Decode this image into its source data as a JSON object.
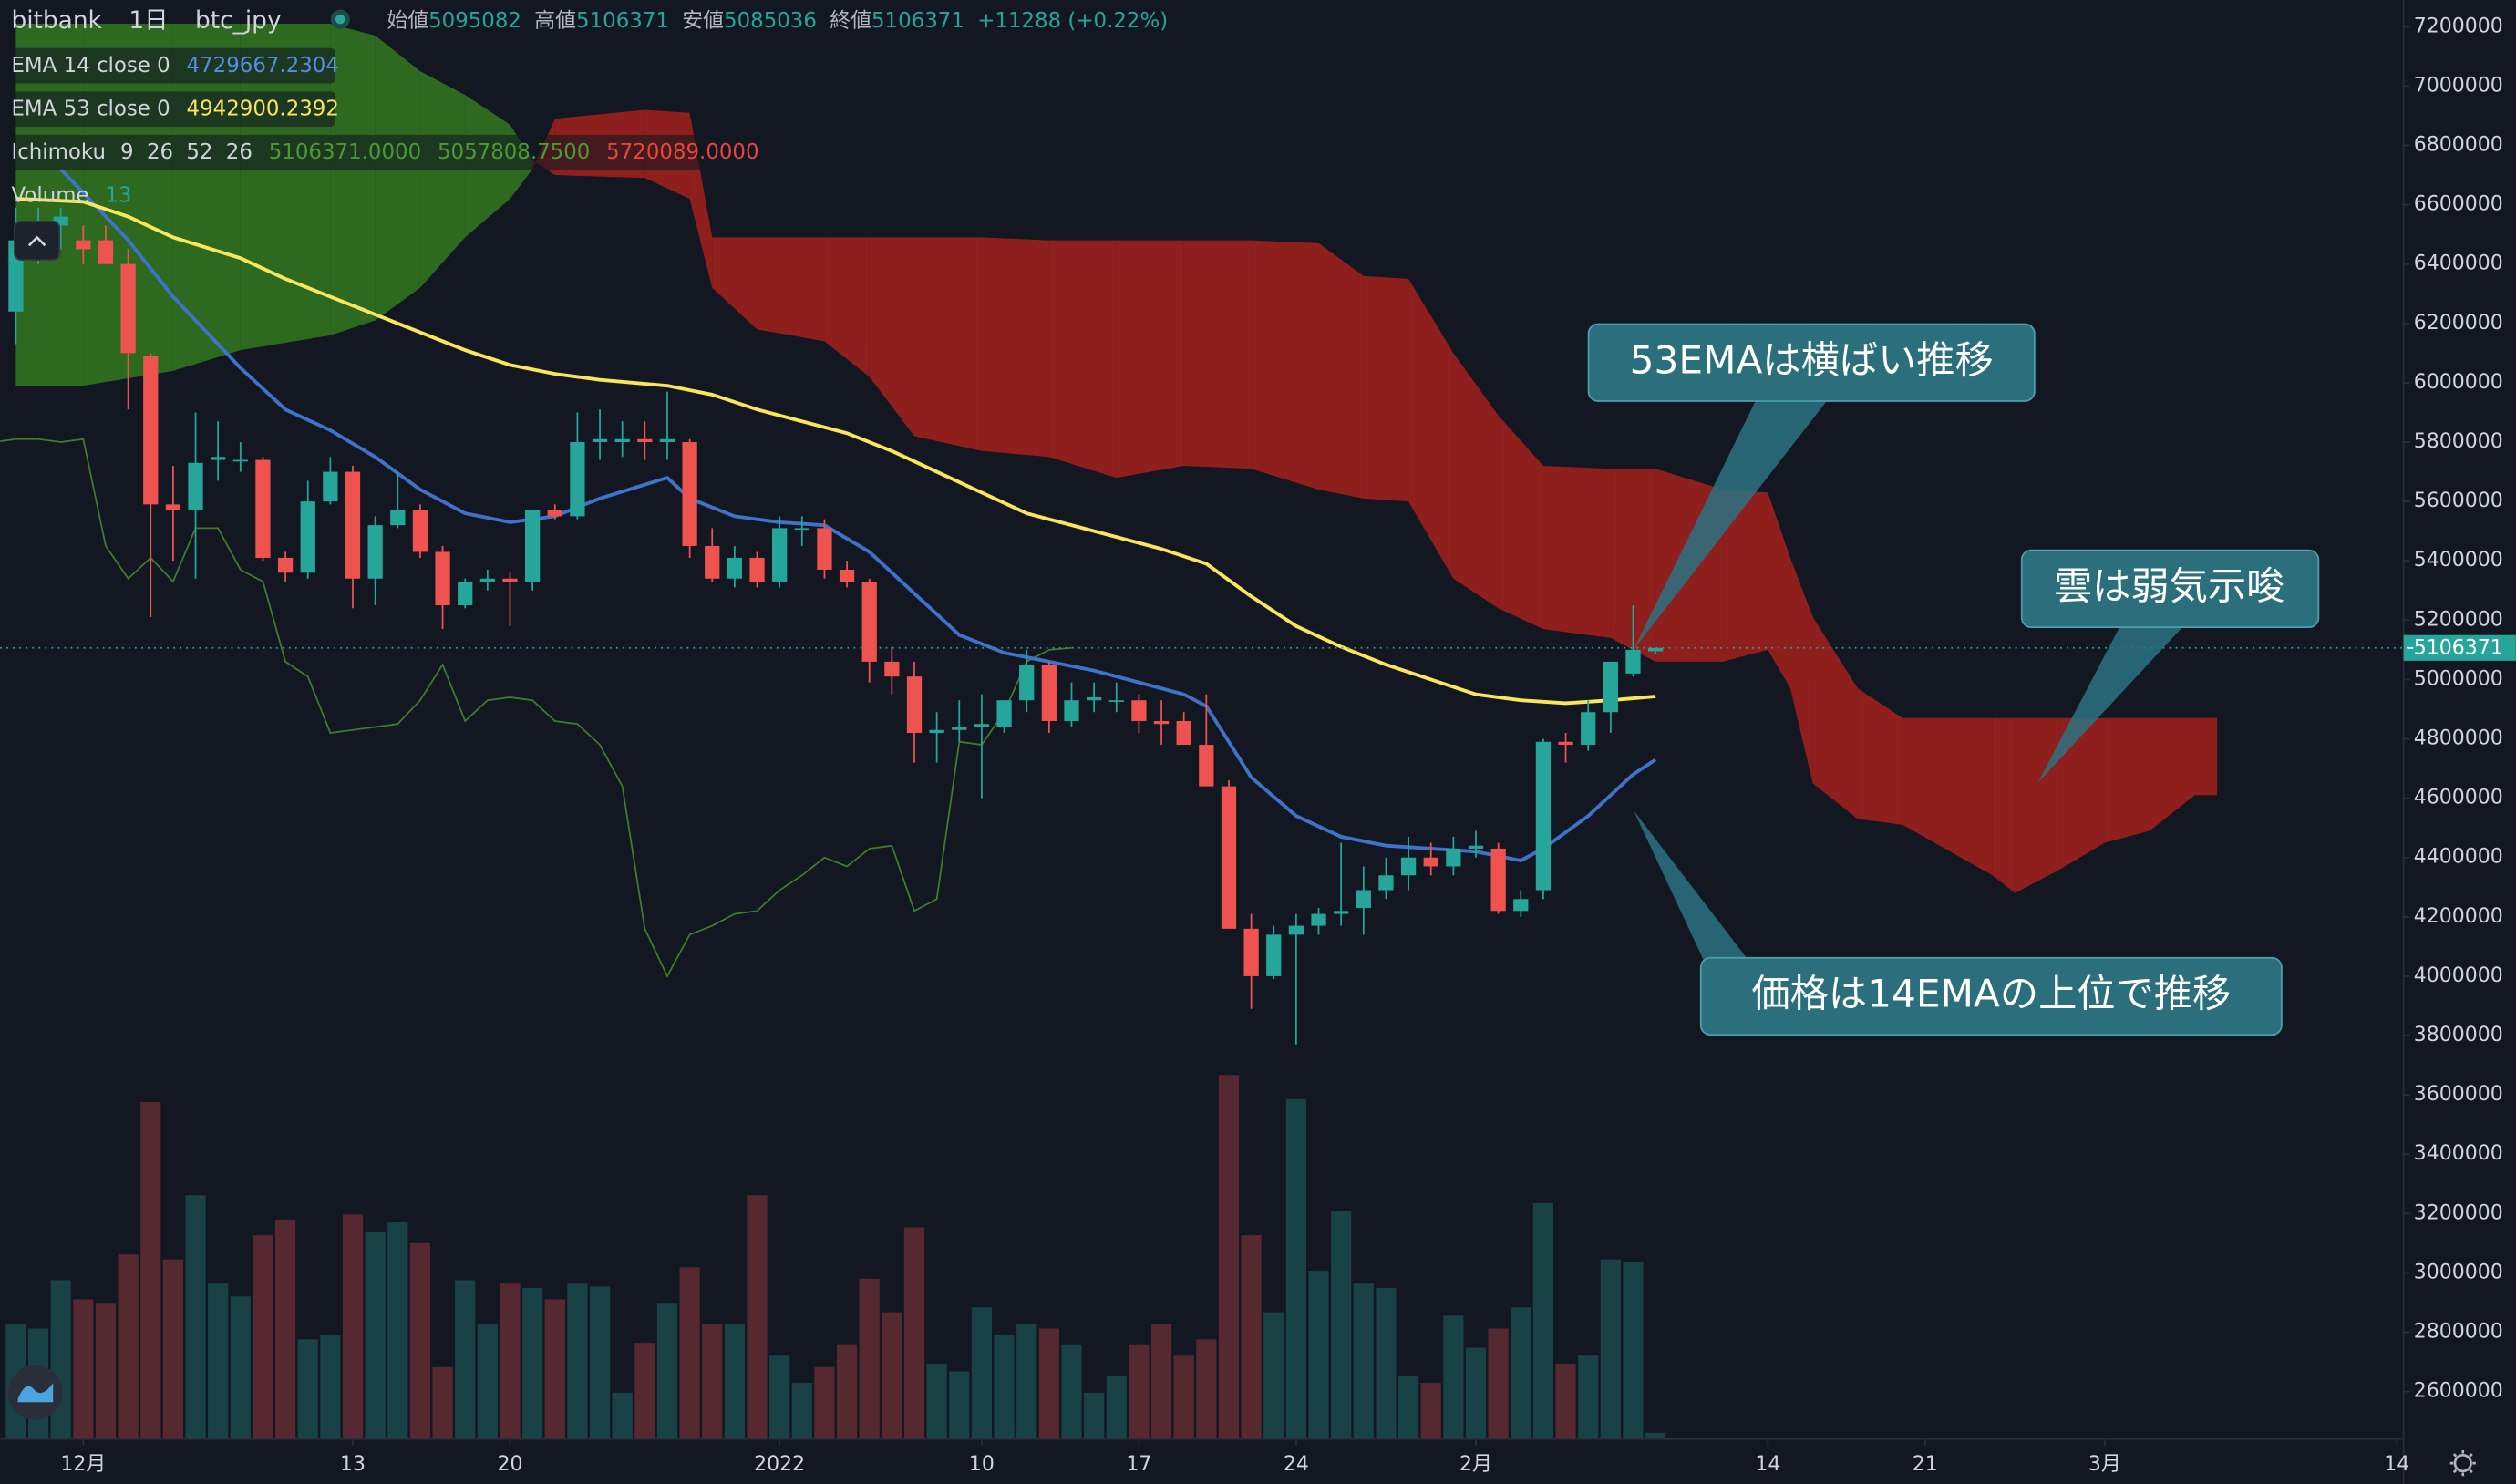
{
  "chart_data": {
    "type": "candlestick",
    "title": "bitbank",
    "interval": "1日",
    "symbol": "btc_jpy",
    "ohlc_labels": [
      "始値",
      "高値",
      "安値",
      "終値"
    ],
    "change": "+11288 (+0.22%)",
    "up_color": "#26a69a",
    "down_color": "#ef5350",
    "x": [
      -3,
      -2,
      -1,
      0,
      1,
      2,
      3,
      4,
      5,
      6,
      7,
      8,
      9,
      10,
      11,
      12,
      13,
      14,
      15,
      16,
      17,
      18,
      19,
      20,
      21,
      22,
      23,
      24,
      25,
      26,
      27,
      28,
      29,
      30,
      31,
      32,
      33,
      34,
      35,
      36,
      37,
      38,
      39,
      40,
      41,
      42,
      43,
      44,
      45,
      46,
      47,
      48,
      49,
      50,
      51,
      52,
      53,
      54,
      55,
      56,
      57,
      58,
      59,
      60,
      61,
      62,
      63,
      64,
      65,
      66,
      67,
      68,
      69,
      70
    ],
    "candles": [
      [
        6240000,
        6590000,
        6130000,
        6480000
      ],
      [
        6480000,
        6590000,
        6400000,
        6530000
      ],
      [
        6530000,
        6590000,
        6450000,
        6560000
      ],
      [
        6480000,
        6530000,
        6400000,
        6450000
      ],
      [
        6480000,
        6530000,
        6400000,
        6400000
      ],
      [
        6400000,
        6450000,
        5910000,
        6100000
      ],
      [
        6090000,
        6100000,
        5210000,
        5590000
      ],
      [
        5590000,
        5720000,
        5400000,
        5570000
      ],
      [
        5570000,
        5900000,
        5340000,
        5730000
      ],
      [
        5740000,
        5870000,
        5670000,
        5750000
      ],
      [
        5740000,
        5800000,
        5700000,
        5740000
      ],
      [
        5740000,
        5750000,
        5400000,
        5410000
      ],
      [
        5410000,
        5430000,
        5330000,
        5360000
      ],
      [
        5360000,
        5670000,
        5340000,
        5600000
      ],
      [
        5600000,
        5750000,
        5590000,
        5700000
      ],
      [
        5700000,
        5720000,
        5240000,
        5340000
      ],
      [
        5340000,
        5550000,
        5250000,
        5520000
      ],
      [
        5520000,
        5700000,
        5510000,
        5570000
      ],
      [
        5570000,
        5590000,
        5410000,
        5430000
      ],
      [
        5430000,
        5450000,
        5170000,
        5250000
      ],
      [
        5250000,
        5340000,
        5240000,
        5330000
      ],
      [
        5330000,
        5370000,
        5300000,
        5340000
      ],
      [
        5340000,
        5360000,
        5180000,
        5330000
      ],
      [
        5330000,
        5570000,
        5300000,
        5570000
      ],
      [
        5570000,
        5590000,
        5540000,
        5550000
      ],
      [
        5550000,
        5900000,
        5540000,
        5800000
      ],
      [
        5800000,
        5910000,
        5740000,
        5810000
      ],
      [
        5800000,
        5870000,
        5750000,
        5810000
      ],
      [
        5810000,
        5870000,
        5740000,
        5800000
      ],
      [
        5800000,
        5970000,
        5740000,
        5810000
      ],
      [
        5800000,
        5810000,
        5410000,
        5450000
      ],
      [
        5450000,
        5510000,
        5330000,
        5340000
      ],
      [
        5340000,
        5450000,
        5310000,
        5410000
      ],
      [
        5410000,
        5430000,
        5310000,
        5330000
      ],
      [
        5330000,
        5550000,
        5310000,
        5510000
      ],
      [
        5510000,
        5550000,
        5450000,
        5510000
      ],
      [
        5510000,
        5540000,
        5340000,
        5370000
      ],
      [
        5370000,
        5400000,
        5310000,
        5330000
      ],
      [
        5330000,
        5340000,
        4990000,
        5060000
      ],
      [
        5060000,
        5110000,
        4950000,
        5010000
      ],
      [
        5010000,
        5060000,
        4720000,
        4820000
      ],
      [
        4820000,
        4890000,
        4720000,
        4830000
      ],
      [
        4830000,
        4930000,
        4790000,
        4840000
      ],
      [
        4840000,
        4950000,
        4600000,
        4850000
      ],
      [
        4840000,
        4930000,
        4820000,
        4930000
      ],
      [
        4930000,
        5100000,
        4890000,
        5050000
      ],
      [
        5050000,
        5060000,
        4820000,
        4860000
      ],
      [
        4860000,
        4990000,
        4840000,
        4930000
      ],
      [
        4930000,
        4990000,
        4890000,
        4940000
      ],
      [
        4930000,
        4990000,
        4890000,
        4930000
      ],
      [
        4930000,
        4950000,
        4820000,
        4860000
      ],
      [
        4860000,
        4930000,
        4780000,
        4850000
      ],
      [
        4860000,
        4890000,
        4780000,
        4780000
      ],
      [
        4780000,
        4950000,
        4640000,
        4640000
      ],
      [
        4640000,
        4660000,
        4160000,
        4160000
      ],
      [
        4160000,
        4210000,
        3890000,
        4000000
      ],
      [
        4000000,
        4170000,
        3990000,
        4140000
      ],
      [
        4140000,
        4210000,
        3770000,
        4170000
      ],
      [
        4170000,
        4230000,
        4140000,
        4210000
      ],
      [
        4210000,
        4450000,
        4170000,
        4220000
      ],
      [
        4230000,
        4370000,
        4140000,
        4290000
      ],
      [
        4290000,
        4400000,
        4260000,
        4340000
      ],
      [
        4340000,
        4470000,
        4290000,
        4400000
      ],
      [
        4400000,
        4450000,
        4340000,
        4370000
      ],
      [
        4370000,
        4470000,
        4340000,
        4430000
      ],
      [
        4430000,
        4490000,
        4400000,
        4440000
      ],
      [
        4430000,
        4450000,
        4210000,
        4220000
      ],
      [
        4220000,
        4290000,
        4200000,
        4260000
      ],
      [
        4290000,
        4800000,
        4260000,
        4790000
      ],
      [
        4790000,
        4820000,
        4720000,
        4780000
      ],
      [
        4780000,
        4930000,
        4760000,
        4890000
      ],
      [
        4890000,
        5060000,
        4820000,
        5060000
      ],
      [
        5020000,
        5250000,
        5010000,
        5100000
      ],
      [
        5095082,
        5106371,
        5085036,
        5106371
      ]
    ],
    "volume": {
      "name": "Volume",
      "values": [
        234,
        224,
        322,
        283,
        276,
        374,
        683,
        364,
        494,
        315,
        289,
        413,
        445,
        202,
        211,
        455,
        419,
        439,
        397,
        146,
        322,
        234,
        315,
        306,
        283,
        315,
        309,
        94,
        195,
        276,
        348,
        234,
        234,
        494,
        169,
        114,
        146,
        192,
        325,
        257,
        429,
        153,
        137,
        267,
        211,
        234,
        224,
        192,
        94,
        127,
        192,
        234,
        169,
        202,
        738,
        413,
        257,
        689,
        341,
        462,
        315,
        306,
        127,
        114,
        250,
        185,
        224,
        267,
        478,
        153,
        169,
        364,
        358,
        13
      ]
    },
    "series": [
      {
        "name": "EMA 14 close 0",
        "color": "#3f73c9",
        "x": [
          -1,
          2,
          4,
          7,
          9,
          11,
          13,
          15,
          17,
          19,
          21,
          23,
          26,
          27,
          29,
          31,
          33,
          35,
          37,
          39,
          41,
          43,
          45,
          47,
          49,
          50,
          51,
          52,
          54,
          56,
          58,
          60,
          62,
          64,
          65,
          67,
          69,
          70
        ],
        "values": [
          6720000,
          6480000,
          6290000,
          6050000,
          5910000,
          5840000,
          5750000,
          5640000,
          5560000,
          5530000,
          5550000,
          5610000,
          5680000,
          5610000,
          5550000,
          5530000,
          5520000,
          5430000,
          5290000,
          5150000,
          5090000,
          5060000,
          5030000,
          4990000,
          4950000,
          4910000,
          4790000,
          4670000,
          4540000,
          4470000,
          4440000,
          4430000,
          4420000,
          4390000,
          4430000,
          4540000,
          4680000,
          4729667.2304
        ]
      },
      {
        "name": "EMA 53 close 0",
        "color": "#f9e65c",
        "x": [
          -3,
          0,
          2,
          4,
          7,
          9,
          11,
          13,
          15,
          17,
          19,
          21,
          23,
          26,
          28,
          30,
          32,
          34,
          36,
          38,
          40,
          42,
          44,
          46,
          48,
          50,
          52,
          54,
          56,
          58,
          60,
          62,
          64,
          66,
          68,
          70
        ],
        "values": [
          6620000,
          6610000,
          6560000,
          6490000,
          6420000,
          6350000,
          6290000,
          6230000,
          6170000,
          6110000,
          6060000,
          6030000,
          6010000,
          5990000,
          5960000,
          5910000,
          5870000,
          5830000,
          5770000,
          5700000,
          5630000,
          5560000,
          5520000,
          5480000,
          5440000,
          5390000,
          5280000,
          5180000,
          5110000,
          5050000,
          5000000,
          4950000,
          4930000,
          4920000,
          4930000,
          4942900.2392
        ]
      }
    ],
    "ichimoku": {
      "name": "Ichimoku",
      "params": [
        9,
        26,
        52,
        26
      ],
      "legend_values": [
        "5106371.0000",
        "5057808.7500",
        "5720089.0000"
      ],
      "lagging_color": "#3f7d2b",
      "up_color": "#2d6a1f",
      "down_color": "#8f1f1d",
      "x": [
        -3,
        0,
        4,
        7,
        11,
        13,
        15,
        17,
        19,
        20,
        21,
        25,
        27,
        28,
        30,
        33,
        35,
        37,
        40,
        43,
        46,
        49,
        52,
        55,
        57,
        59,
        61,
        63,
        65,
        68,
        70,
        73,
        75,
        76,
        77,
        79,
        81,
        85,
        86,
        88,
        90,
        92,
        94,
        95
      ],
      "span_a": [
        7210000,
        7210000,
        7210000,
        7210000,
        7210000,
        7170000,
        7050000,
        6970000,
        6870000,
        6750000,
        6700000,
        6690000,
        6620000,
        6320000,
        6180000,
        6140000,
        6020000,
        5820000,
        5770000,
        5750000,
        5680000,
        5720000,
        5710000,
        5640000,
        5610000,
        5600000,
        5340000,
        5240000,
        5170000,
        5140000,
        5060000,
        5060000,
        5100000,
        4970000,
        4650000,
        4530000,
        4510000,
        4340000,
        4280000,
        4360000,
        4450000,
        4490000,
        4610000,
        4610000
      ],
      "span_b": [
        5990000,
        5990000,
        6040000,
        6110000,
        6160000,
        6210000,
        6320000,
        6490000,
        6620000,
        6720000,
        6890000,
        6920000,
        6910000,
        6490000,
        6490000,
        6490000,
        6490000,
        6490000,
        6490000,
        6480000,
        6480000,
        6480000,
        6480000,
        6470000,
        6360000,
        6350000,
        6100000,
        5890000,
        5720000,
        5710000,
        5710000,
        5640000,
        5630000,
        5410000,
        5210000,
        4970000,
        4870000,
        4870000,
        4870000,
        4870000,
        4870000,
        4870000,
        4870000,
        4870000
      ]
    },
    "xlim": [
      -3.7,
      103.3
    ],
    "xticks": [
      {
        "value": 0,
        "label": "12月"
      },
      {
        "value": 12,
        "label": "13"
      },
      {
        "value": 19,
        "label": "20"
      },
      {
        "value": 31,
        "label": "2022"
      },
      {
        "value": 40,
        "label": "10"
      },
      {
        "value": 47,
        "label": "17"
      },
      {
        "value": 54,
        "label": "24"
      },
      {
        "value": 62,
        "label": "2月"
      },
      {
        "value": 75,
        "label": "14"
      },
      {
        "value": 82,
        "label": "21"
      },
      {
        "value": 90,
        "label": "3月"
      },
      {
        "value": 103,
        "label": "14"
      }
    ],
    "ylim": [
      2440000,
      7290000
    ],
    "yticks": [
      2600000,
      2800000,
      3000000,
      3200000,
      3400000,
      3600000,
      3800000,
      4000000,
      4200000,
      4400000,
      4600000,
      4800000,
      5000000,
      5200000,
      5400000,
      5600000,
      5800000,
      6000000,
      6200000,
      6400000,
      6600000,
      6800000,
      7000000,
      7200000
    ],
    "annotations": [
      {
        "text": "53EMAは横ばい推移"
      },
      {
        "text": "雲は弱気示唆"
      },
      {
        "text": "価格は14EMAの上位で推移"
      }
    ]
  }
}
